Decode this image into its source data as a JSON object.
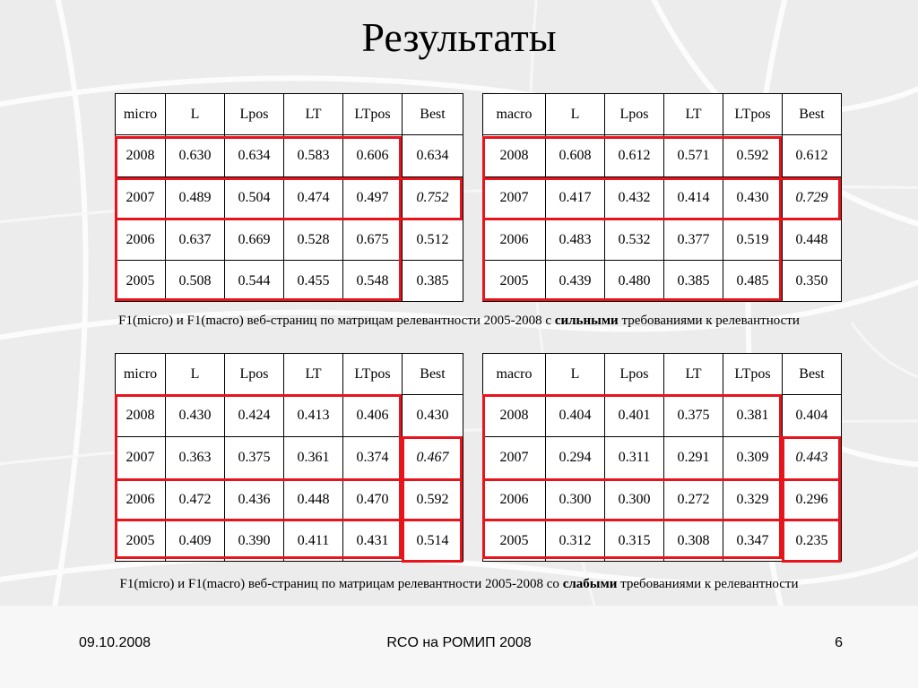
{
  "slide": {
    "title": "Результаты",
    "footer": {
      "date": "09.10.2008",
      "center": "RCO на РОМИП 2008",
      "page": "6"
    }
  },
  "columns": [
    "L",
    "Lpos",
    "LT",
    "LTpos",
    "Best"
  ],
  "strong": {
    "micro": {
      "label": "micro",
      "rows": [
        {
          "year": "2008",
          "values": [
            "0.630",
            "0.634",
            "0.583",
            "0.606",
            "0.634"
          ]
        },
        {
          "year": "2007",
          "values": [
            "0.489",
            "0.504",
            "0.474",
            "0.497",
            "0.752"
          ]
        },
        {
          "year": "2006",
          "values": [
            "0.637",
            "0.669",
            "0.528",
            "0.675",
            "0.512"
          ]
        },
        {
          "year": "2005",
          "values": [
            "0.508",
            "0.544",
            "0.455",
            "0.548",
            "0.385"
          ]
        }
      ]
    },
    "macro": {
      "label": "macro",
      "rows": [
        {
          "year": "2008",
          "values": [
            "0.608",
            "0.612",
            "0.571",
            "0.592",
            "0.612"
          ]
        },
        {
          "year": "2007",
          "values": [
            "0.417",
            "0.432",
            "0.414",
            "0.430",
            "0.729"
          ]
        },
        {
          "year": "2006",
          "values": [
            "0.483",
            "0.532",
            "0.377",
            "0.519",
            "0.448"
          ]
        },
        {
          "year": "2005",
          "values": [
            "0.439",
            "0.480",
            "0.385",
            "0.485",
            "0.350"
          ]
        }
      ]
    },
    "caption": {
      "before": "F1(micro) и F1(macro) веб-страниц по матрицам релевантности 2005-2008 с ",
      "bold": "сильными",
      "after": " требованиями к релевантности"
    }
  },
  "weak": {
    "micro": {
      "label": "micro",
      "rows": [
        {
          "year": "2008",
          "values": [
            "0.430",
            "0.424",
            "0.413",
            "0.406",
            "0.430"
          ]
        },
        {
          "year": "2007",
          "values": [
            "0.363",
            "0.375",
            "0.361",
            "0.374",
            "0.467"
          ]
        },
        {
          "year": "2006",
          "values": [
            "0.472",
            "0.436",
            "0.448",
            "0.470",
            "0.592"
          ]
        },
        {
          "year": "2005",
          "values": [
            "0.409",
            "0.390",
            "0.411",
            "0.431",
            "0.514"
          ]
        }
      ]
    },
    "macro": {
      "label": "macro",
      "rows": [
        {
          "year": "2008",
          "values": [
            "0.404",
            "0.401",
            "0.375",
            "0.381",
            "0.404"
          ]
        },
        {
          "year": "2007",
          "values": [
            "0.294",
            "0.311",
            "0.291",
            "0.309",
            "0.443"
          ]
        },
        {
          "year": "2006",
          "values": [
            "0.300",
            "0.300",
            "0.272",
            "0.329",
            "0.296"
          ]
        },
        {
          "year": "2005",
          "values": [
            "0.312",
            "0.315",
            "0.308",
            "0.347",
            "0.235"
          ]
        }
      ]
    },
    "caption": {
      "before": "F1(micro) и F1(macro) веб-страниц по матрицам релевантности 2005-2008 со ",
      "bold": "слабыми",
      "after": " требованиями к релевантности"
    }
  },
  "colors": {
    "highlight": "#e8141c",
    "background": "#ececec"
  }
}
